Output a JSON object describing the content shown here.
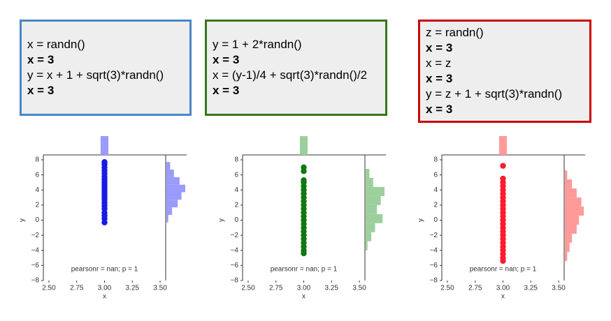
{
  "code_boxes": [
    {
      "color": "#4a86c8",
      "lines": [
        "x = randn()",
        "x = 3",
        "y = x + 1 + sqrt(3)*randn()",
        "x = 3"
      ],
      "bold": [
        false,
        true,
        false,
        true
      ]
    },
    {
      "color": "#38761d",
      "lines": [
        "y = 1 + 2*randn()",
        "x = 3",
        "x = (y-1)/4 + sqrt(3)*randn()/2",
        "x = 3"
      ],
      "bold": [
        false,
        true,
        false,
        true
      ]
    },
    {
      "color": "#cc0000",
      "lines": [
        "z = randn()",
        "x = 3",
        "x = z",
        "x = 3",
        "y = z + 1 + sqrt(3)*randn()",
        "x = 3"
      ],
      "bold": [
        false,
        true,
        false,
        true,
        false,
        true
      ]
    }
  ],
  "chart_data": [
    {
      "type": "scatter",
      "x_label": "x",
      "y_label": "y",
      "annotation": "pearsonr = nan; p = 1",
      "color": "#1a1ae6",
      "hist_color": "#9a9aff",
      "x": [
        3,
        3,
        3,
        3,
        3,
        3,
        3,
        3,
        3,
        3,
        3,
        3,
        3,
        3,
        3,
        3,
        3,
        3,
        3,
        3,
        3,
        3,
        3
      ],
      "y": [
        -0.3,
        0.2,
        0.6,
        1.0,
        1.5,
        1.9,
        2.3,
        2.7,
        3.0,
        3.3,
        3.6,
        3.9,
        4.2,
        4.5,
        4.8,
        5.1,
        5.4,
        5.8,
        6.2,
        6.6,
        7.0,
        7.4,
        7.7
      ],
      "x_hist": {
        "bins": [
          2.965,
          3.035
        ],
        "counts": [
          23
        ]
      },
      "y_hist": {
        "bins": [
          -0.3,
          0.7,
          1.7,
          2.7,
          3.7,
          4.7,
          5.7,
          6.7,
          7.7
        ],
        "counts": [
          1,
          3,
          6,
          8,
          10,
          7,
          4,
          2
        ]
      },
      "xlim": [
        2.45,
        3.55
      ],
      "ylim": [
        -8,
        8
      ],
      "xticks": [
        {
          "value": 2.5,
          "label": "2.50"
        },
        {
          "value": 2.75,
          "label": "2.75"
        },
        {
          "value": 3,
          "label": "3.00"
        },
        {
          "value": 3.25,
          "label": "3.25"
        },
        {
          "value": 3.5,
          "label": "3.50"
        }
      ],
      "yticks": [
        {
          "value": -8,
          "label": "−8"
        },
        {
          "value": -6,
          "label": "−6"
        },
        {
          "value": -4,
          "label": "−4"
        },
        {
          "value": -2,
          "label": "−2"
        },
        0,
        2,
        4,
        6,
        8
      ]
    },
    {
      "type": "scatter",
      "x_label": "x",
      "y_label": "y",
      "annotation": "pearsonr = nan; p = 1",
      "color": "#117711",
      "hist_color": "#9ccf9c",
      "x": [
        3,
        3,
        3,
        3,
        3,
        3,
        3,
        3,
        3,
        3,
        3,
        3,
        3,
        3,
        3,
        3,
        3,
        3,
        3,
        3,
        3,
        3,
        3
      ],
      "y": [
        -4.4,
        -4.0,
        -3.5,
        -3.0,
        -2.5,
        -2.0,
        -1.5,
        -1.0,
        -0.5,
        0,
        0.5,
        1.0,
        1.5,
        2.0,
        2.5,
        3.0,
        3.5,
        4.0,
        4.5,
        5.0,
        5.3,
        6.5,
        7.0
      ],
      "x_hist": {
        "bins": [
          2.965,
          3.035
        ],
        "counts": [
          23
        ]
      },
      "y_hist": {
        "bins": [
          -4,
          -2.8,
          -1.6,
          -0.4,
          0.8,
          2.0,
          3.2,
          4.4,
          5.6,
          6.8
        ],
        "counts": [
          1,
          3,
          5,
          9,
          6,
          8,
          10,
          4,
          2
        ]
      },
      "xlim": [
        2.45,
        3.55
      ],
      "ylim": [
        -8,
        8
      ],
      "xticks": [
        {
          "value": 2.5,
          "label": "2.50"
        },
        {
          "value": 2.75,
          "label": "2.75"
        },
        {
          "value": 3,
          "label": "3.00"
        },
        {
          "value": 3.25,
          "label": "3.25"
        },
        {
          "value": 3.5,
          "label": "3.50"
        }
      ],
      "yticks": [
        {
          "value": -8,
          "label": "−8"
        },
        {
          "value": -6,
          "label": "−6"
        },
        {
          "value": -4,
          "label": "−4"
        },
        {
          "value": -2,
          "label": "−2"
        },
        0,
        2,
        4,
        6,
        8
      ]
    },
    {
      "type": "scatter",
      "x_label": "x",
      "y_label": "y",
      "annotation": "pearsonr = nan; p = 1",
      "color": "#ff1a2e",
      "hist_color": "#ff9a9a",
      "x": [
        3,
        3,
        3,
        3,
        3,
        3,
        3,
        3,
        3,
        3,
        3,
        3,
        3,
        3,
        3,
        3,
        3,
        3,
        3,
        3,
        3,
        3,
        3,
        3
      ],
      "y": [
        -5.4,
        -5.0,
        -4.5,
        -4.0,
        -3.5,
        -3.0,
        -2.5,
        -2.0,
        -1.5,
        -1.0,
        -0.5,
        0,
        0.5,
        1.0,
        1.5,
        2.0,
        2.5,
        3.0,
        3.5,
        4.0,
        4.5,
        5.0,
        5.5,
        7.2
      ],
      "x_hist": {
        "bins": [
          2.965,
          3.035
        ],
        "counts": [
          24
        ]
      },
      "y_hist": {
        "bins": [
          -5.4,
          -4.2,
          -3.0,
          -1.8,
          -0.6,
          0.6,
          1.8,
          3.0,
          4.2,
          5.4,
          6.6
        ],
        "counts": [
          1,
          2,
          3,
          5,
          6,
          8,
          7,
          5,
          3,
          1
        ]
      },
      "xlim": [
        2.45,
        3.55
      ],
      "ylim": [
        -8,
        8
      ],
      "xticks": [
        {
          "value": 2.5,
          "label": "2.50"
        },
        {
          "value": 2.75,
          "label": "2.75"
        },
        {
          "value": 3,
          "label": "3.00"
        },
        {
          "value": 3.25,
          "label": "3.25"
        },
        {
          "value": 3.5,
          "label": "3.50"
        }
      ],
      "yticks": [
        {
          "value": -8,
          "label": "−8"
        },
        {
          "value": -6,
          "label": "−6"
        },
        {
          "value": -4,
          "label": "−4"
        },
        {
          "value": -2,
          "label": "−2"
        },
        0,
        2,
        4,
        6,
        8
      ]
    }
  ]
}
